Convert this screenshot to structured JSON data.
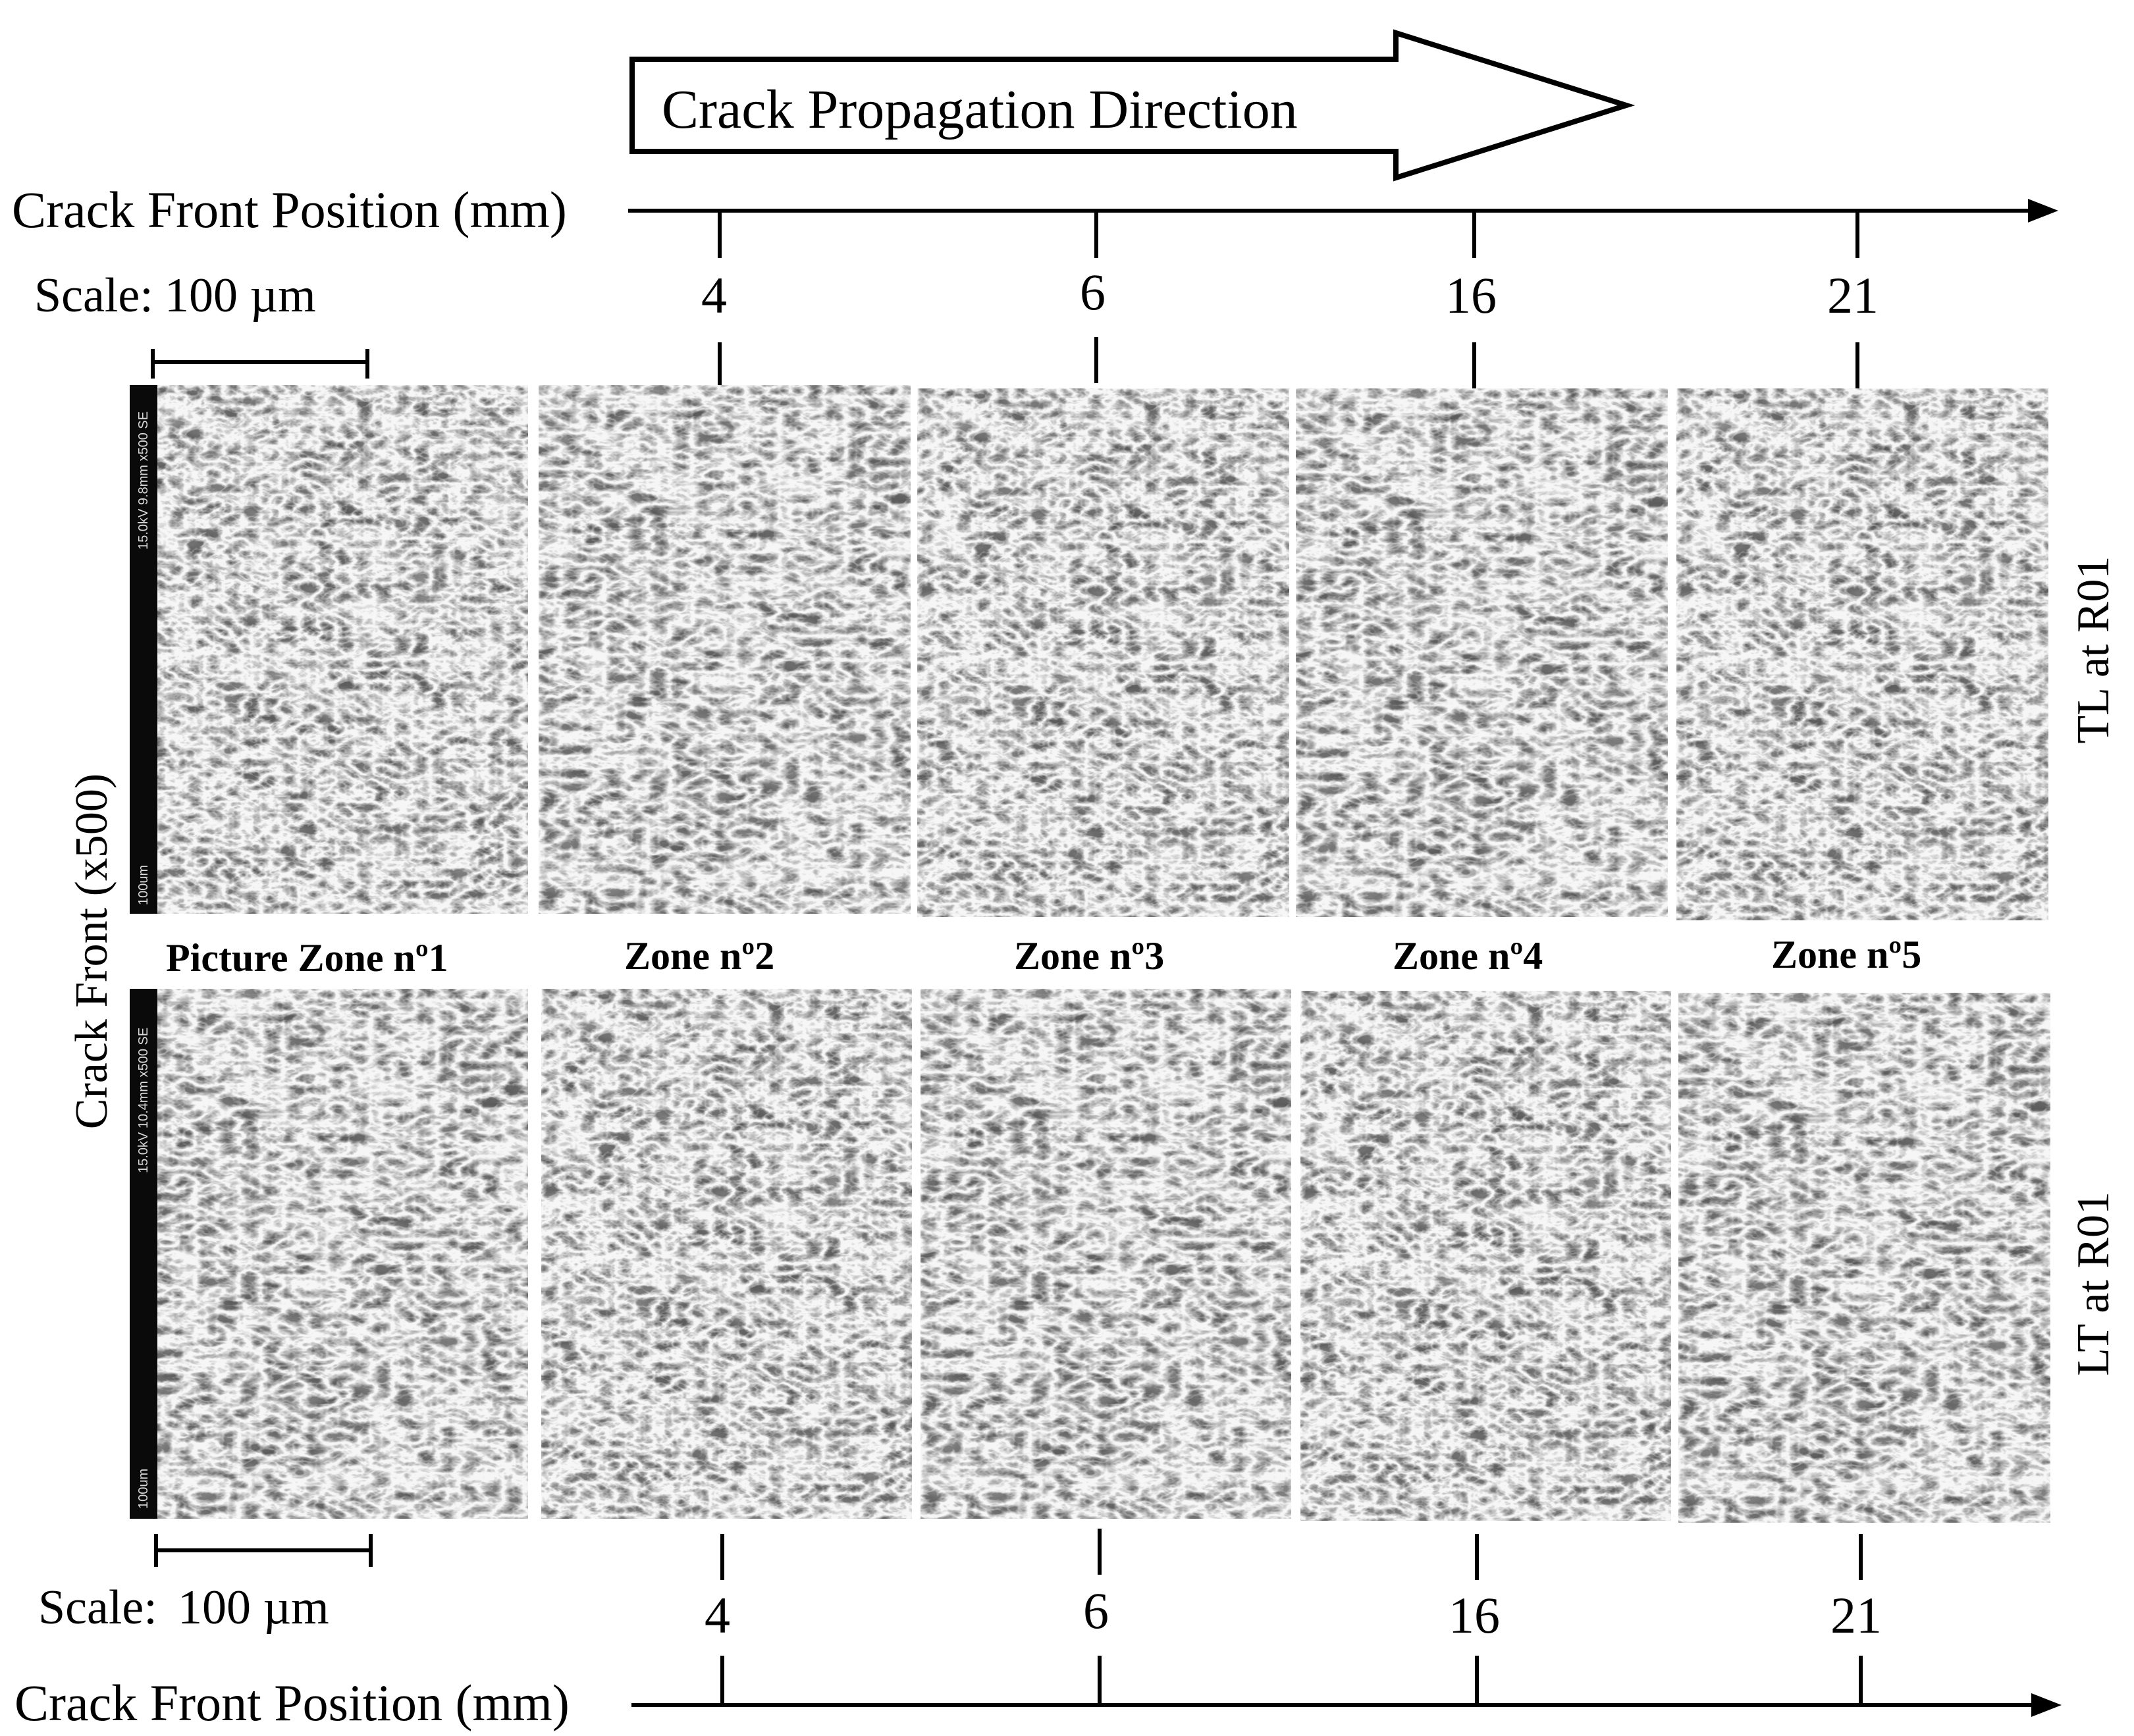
{
  "banner": {
    "text": "Crack Propagation Direction"
  },
  "axis": {
    "title": "Crack Front Position (mm)",
    "ticks": [
      "4",
      "6",
      "16",
      "21"
    ]
  },
  "scale": {
    "label": "Scale:",
    "value": "100 µm"
  },
  "zones": [
    "Picture Zone nº1",
    "Zone nº2",
    "Zone nº3",
    "Zone nº4",
    "Zone nº5"
  ],
  "rows": {
    "top": "TL at R01",
    "bottom": "LT at R01"
  },
  "y_label": "Crack Front (x500)",
  "microscope": {
    "top_info": "15.0kV 9.8mm x500 SE",
    "bottom_info": "15.0kV 10.4mm x500 SE",
    "bar": "100um"
  }
}
